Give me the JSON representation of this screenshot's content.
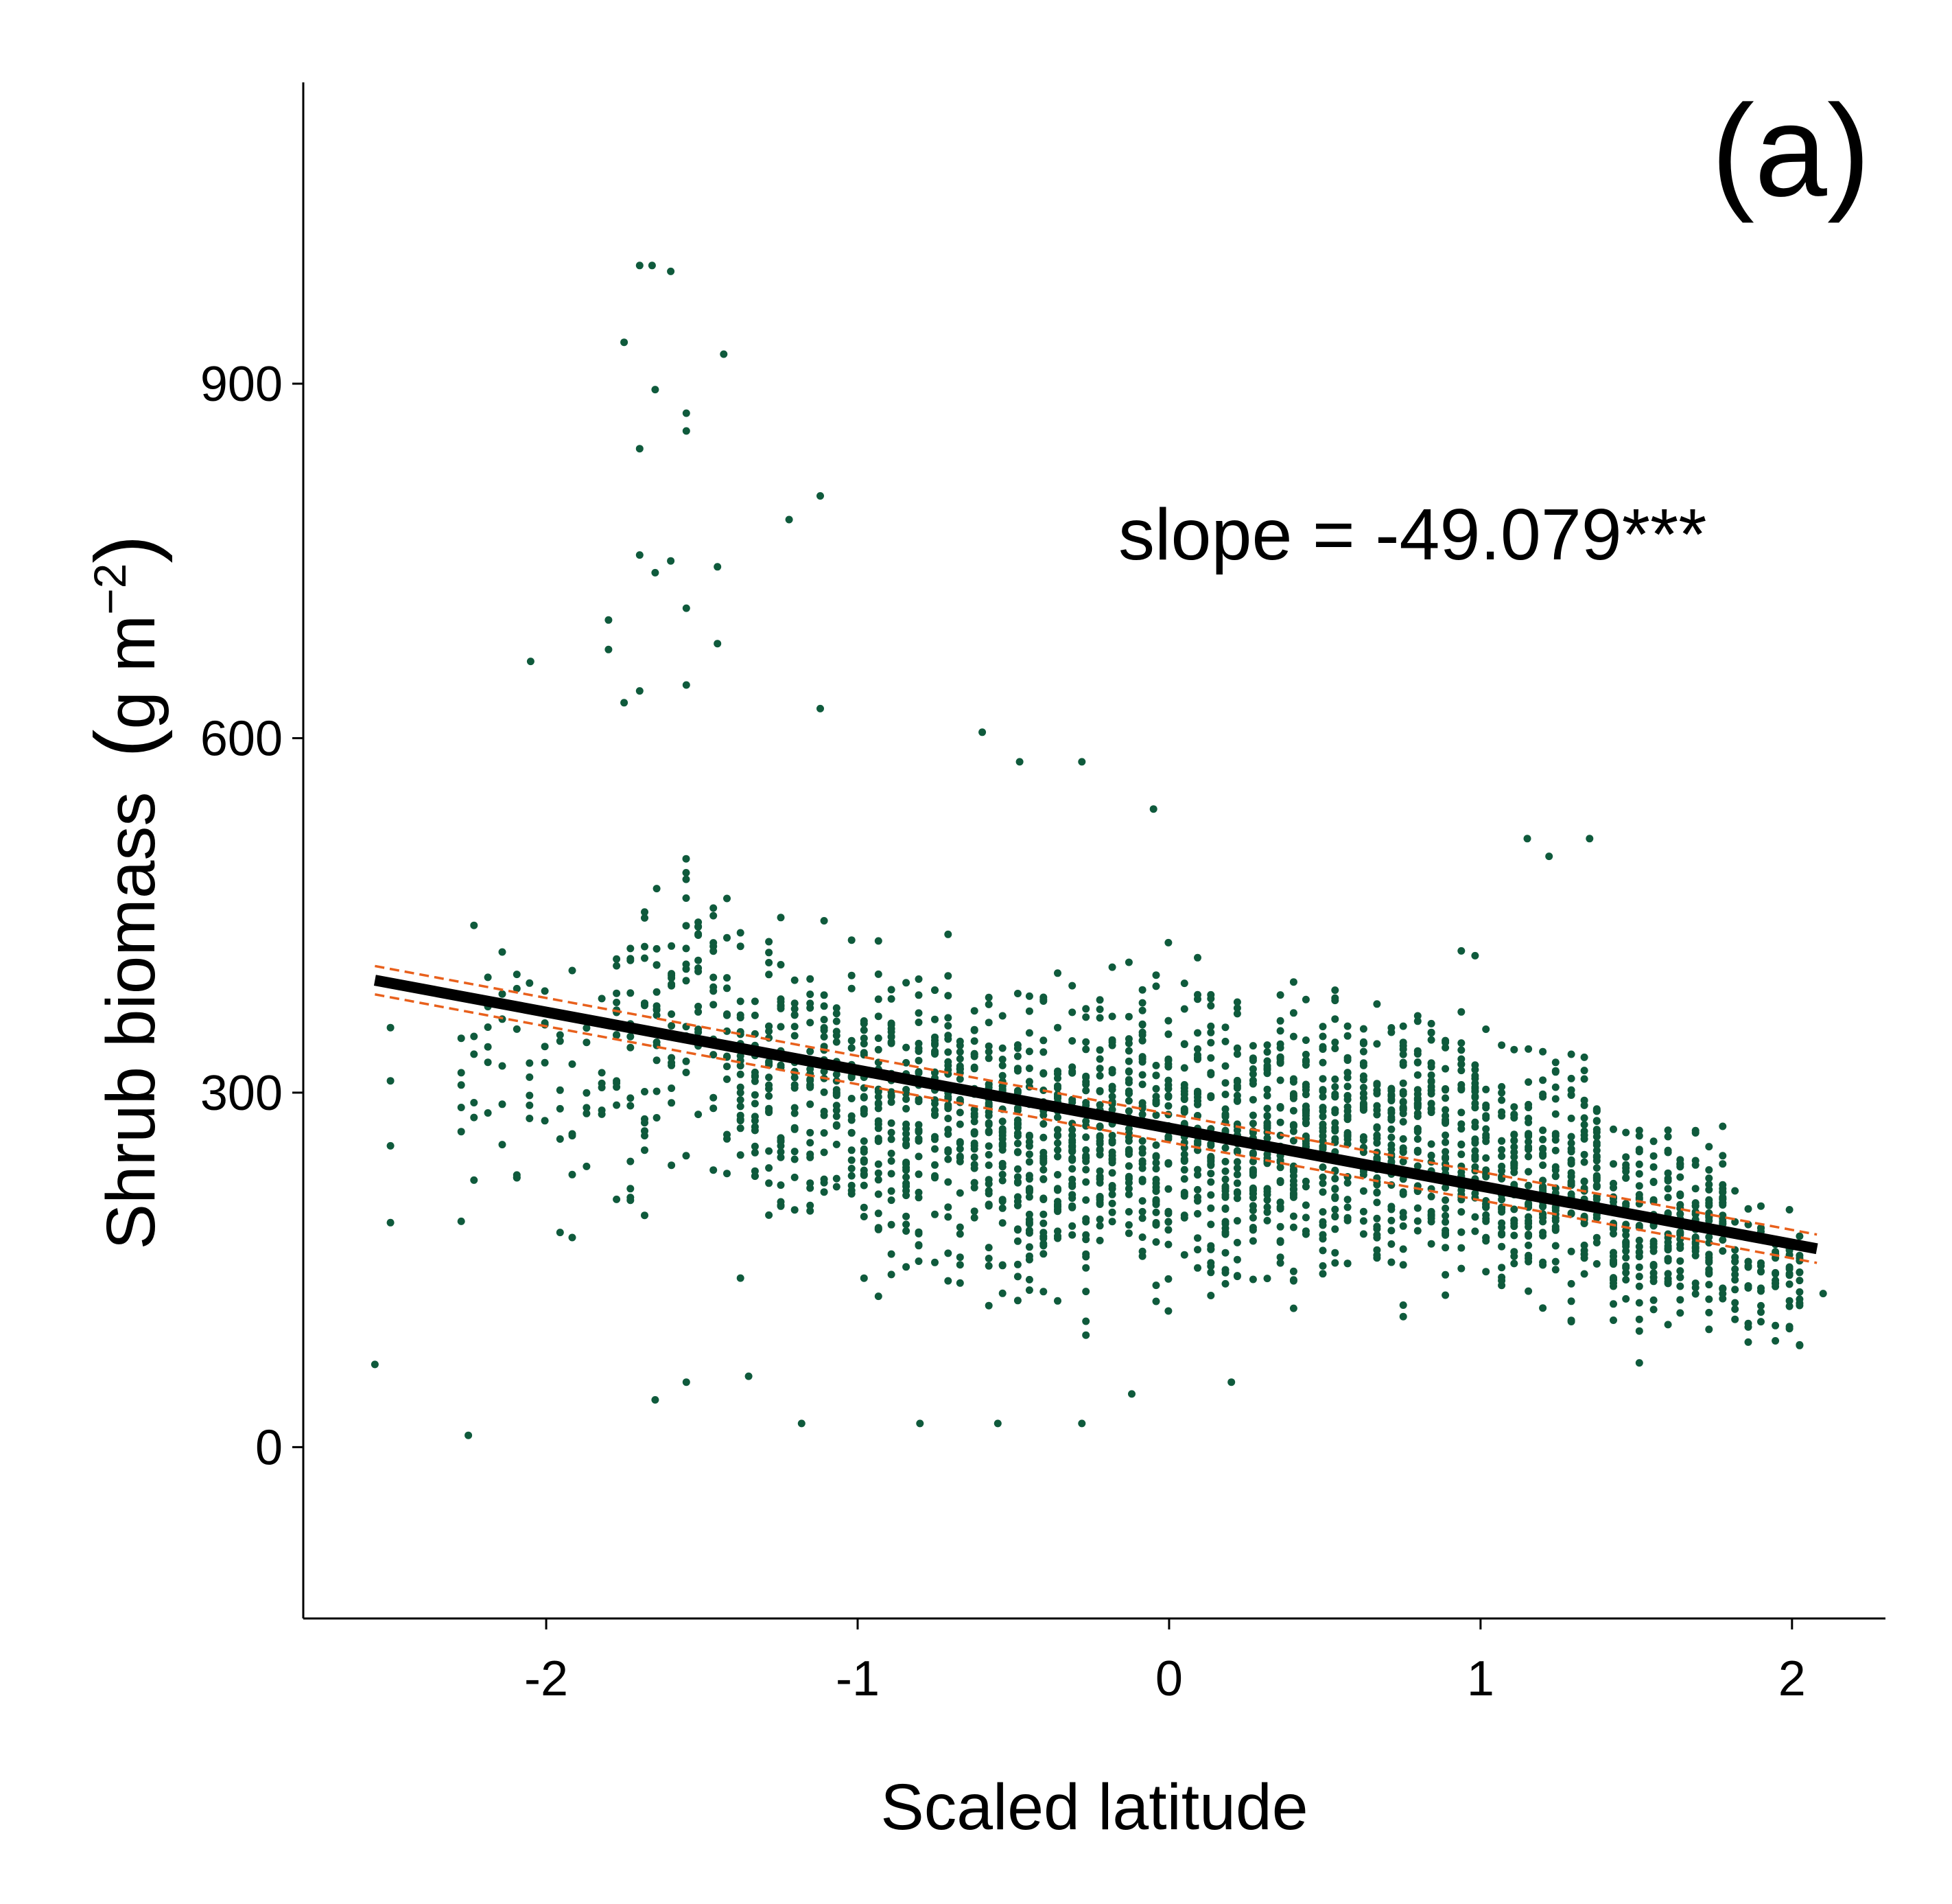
{
  "chart_data": {
    "type": "scatter",
    "panel_label": "(a)",
    "annotation": "slope =  -49.079***",
    "xlabel": "Scaled latitude",
    "ylabel_main": "Shrub biomass",
    "ylabel_unit_base": "g m",
    "ylabel_unit_exp": "−2",
    "xlim": [
      -2.78,
      2.3
    ],
    "ylim": [
      -145,
      1155
    ],
    "x_ticks": [
      -2,
      -1,
      0,
      1,
      2
    ],
    "x_tick_labels": [
      "-2",
      "-1",
      "0",
      "1",
      "2"
    ],
    "y_ticks": [
      0,
      300,
      600,
      900
    ],
    "y_tick_labels": [
      "0",
      "300",
      "600",
      "900"
    ],
    "grid": false,
    "legend": "none",
    "fit": {
      "x_range": [
        -2.55,
        2.08
      ],
      "intercept": 270,
      "slope": -49.079,
      "ci_halfwidth": 12
    },
    "outliers": [
      {
        "x": -2.55,
        "y": 70
      },
      {
        "x": -2.25,
        "y": 10
      },
      {
        "x": -1.7,
        "y": 1000
      },
      {
        "x": -1.66,
        "y": 1000
      },
      {
        "x": -1.6,
        "y": 995
      },
      {
        "x": -1.75,
        "y": 935
      },
      {
        "x": -1.43,
        "y": 925
      },
      {
        "x": -1.65,
        "y": 895
      },
      {
        "x": -1.55,
        "y": 875
      },
      {
        "x": -1.55,
        "y": 860
      },
      {
        "x": -1.7,
        "y": 845
      },
      {
        "x": -1.12,
        "y": 805
      },
      {
        "x": -1.22,
        "y": 785
      },
      {
        "x": -1.7,
        "y": 755
      },
      {
        "x": -1.6,
        "y": 750
      },
      {
        "x": -1.45,
        "y": 745
      },
      {
        "x": -1.65,
        "y": 740
      },
      {
        "x": -1.55,
        "y": 710
      },
      {
        "x": -1.8,
        "y": 700
      },
      {
        "x": -1.45,
        "y": 680
      },
      {
        "x": -1.8,
        "y": 675
      },
      {
        "x": -2.05,
        "y": 665
      },
      {
        "x": -1.55,
        "y": 645
      },
      {
        "x": -1.7,
        "y": 640
      },
      {
        "x": -1.75,
        "y": 630
      },
      {
        "x": -1.12,
        "y": 625
      },
      {
        "x": -0.6,
        "y": 605
      },
      {
        "x": -0.28,
        "y": 580
      },
      {
        "x": -0.48,
        "y": 580
      },
      {
        "x": -0.05,
        "y": 540
      },
      {
        "x": 1.15,
        "y": 515
      },
      {
        "x": 1.35,
        "y": 515
      },
      {
        "x": 1.22,
        "y": 500
      },
      {
        "x": -0.8,
        "y": 20
      },
      {
        "x": -0.55,
        "y": 20
      },
      {
        "x": -0.28,
        "y": 20
      },
      {
        "x": -1.18,
        "y": 20
      },
      {
        "x": -1.65,
        "y": 40
      },
      {
        "x": -0.12,
        "y": 45
      },
      {
        "x": 0.2,
        "y": 55
      },
      {
        "x": -1.55,
        "y": 55
      },
      {
        "x": -1.35,
        "y": 60
      },
      {
        "x": 2.1,
        "y": 130
      },
      {
        "x": -2.5,
        "y": 310
      },
      {
        "x": -2.5,
        "y": 355
      },
      {
        "x": -2.5,
        "y": 255
      },
      {
        "x": -2.5,
        "y": 190
      }
    ],
    "cloud_bands": [
      {
        "x0": -2.3,
        "x1": -1.8,
        "y_lo": 150,
        "y_hi": 470,
        "weight": 70
      },
      {
        "x0": -1.8,
        "x1": -1.4,
        "y_lo": 160,
        "y_hi": 560,
        "weight": 130
      },
      {
        "x0": -1.4,
        "x1": -1.0,
        "y_lo": 130,
        "y_hi": 480,
        "weight": 200
      },
      {
        "x0": -1.0,
        "x1": -0.6,
        "y_lo": 100,
        "y_hi": 460,
        "weight": 260
      },
      {
        "x0": -0.6,
        "x1": -0.2,
        "y_lo": 80,
        "y_hi": 440,
        "weight": 300
      },
      {
        "x0": -0.2,
        "x1": 0.2,
        "y_lo": 85,
        "y_hi": 440,
        "weight": 300
      },
      {
        "x0": 0.2,
        "x1": 0.6,
        "y_lo": 90,
        "y_hi": 430,
        "weight": 300
      },
      {
        "x0": 0.6,
        "x1": 1.0,
        "y_lo": 100,
        "y_hi": 430,
        "weight": 300
      },
      {
        "x0": 1.0,
        "x1": 1.4,
        "y_lo": 80,
        "y_hi": 380,
        "weight": 270
      },
      {
        "x0": 1.4,
        "x1": 1.8,
        "y_lo": 70,
        "y_hi": 300,
        "weight": 230
      },
      {
        "x0": 1.8,
        "x1": 2.05,
        "y_lo": 70,
        "y_hi": 220,
        "weight": 80
      }
    ],
    "colors": {
      "points": "#0f5a3c",
      "fit_line": "#000000",
      "ci_line": "#e8601c",
      "axis": "#000000",
      "text": "#000000"
    }
  }
}
